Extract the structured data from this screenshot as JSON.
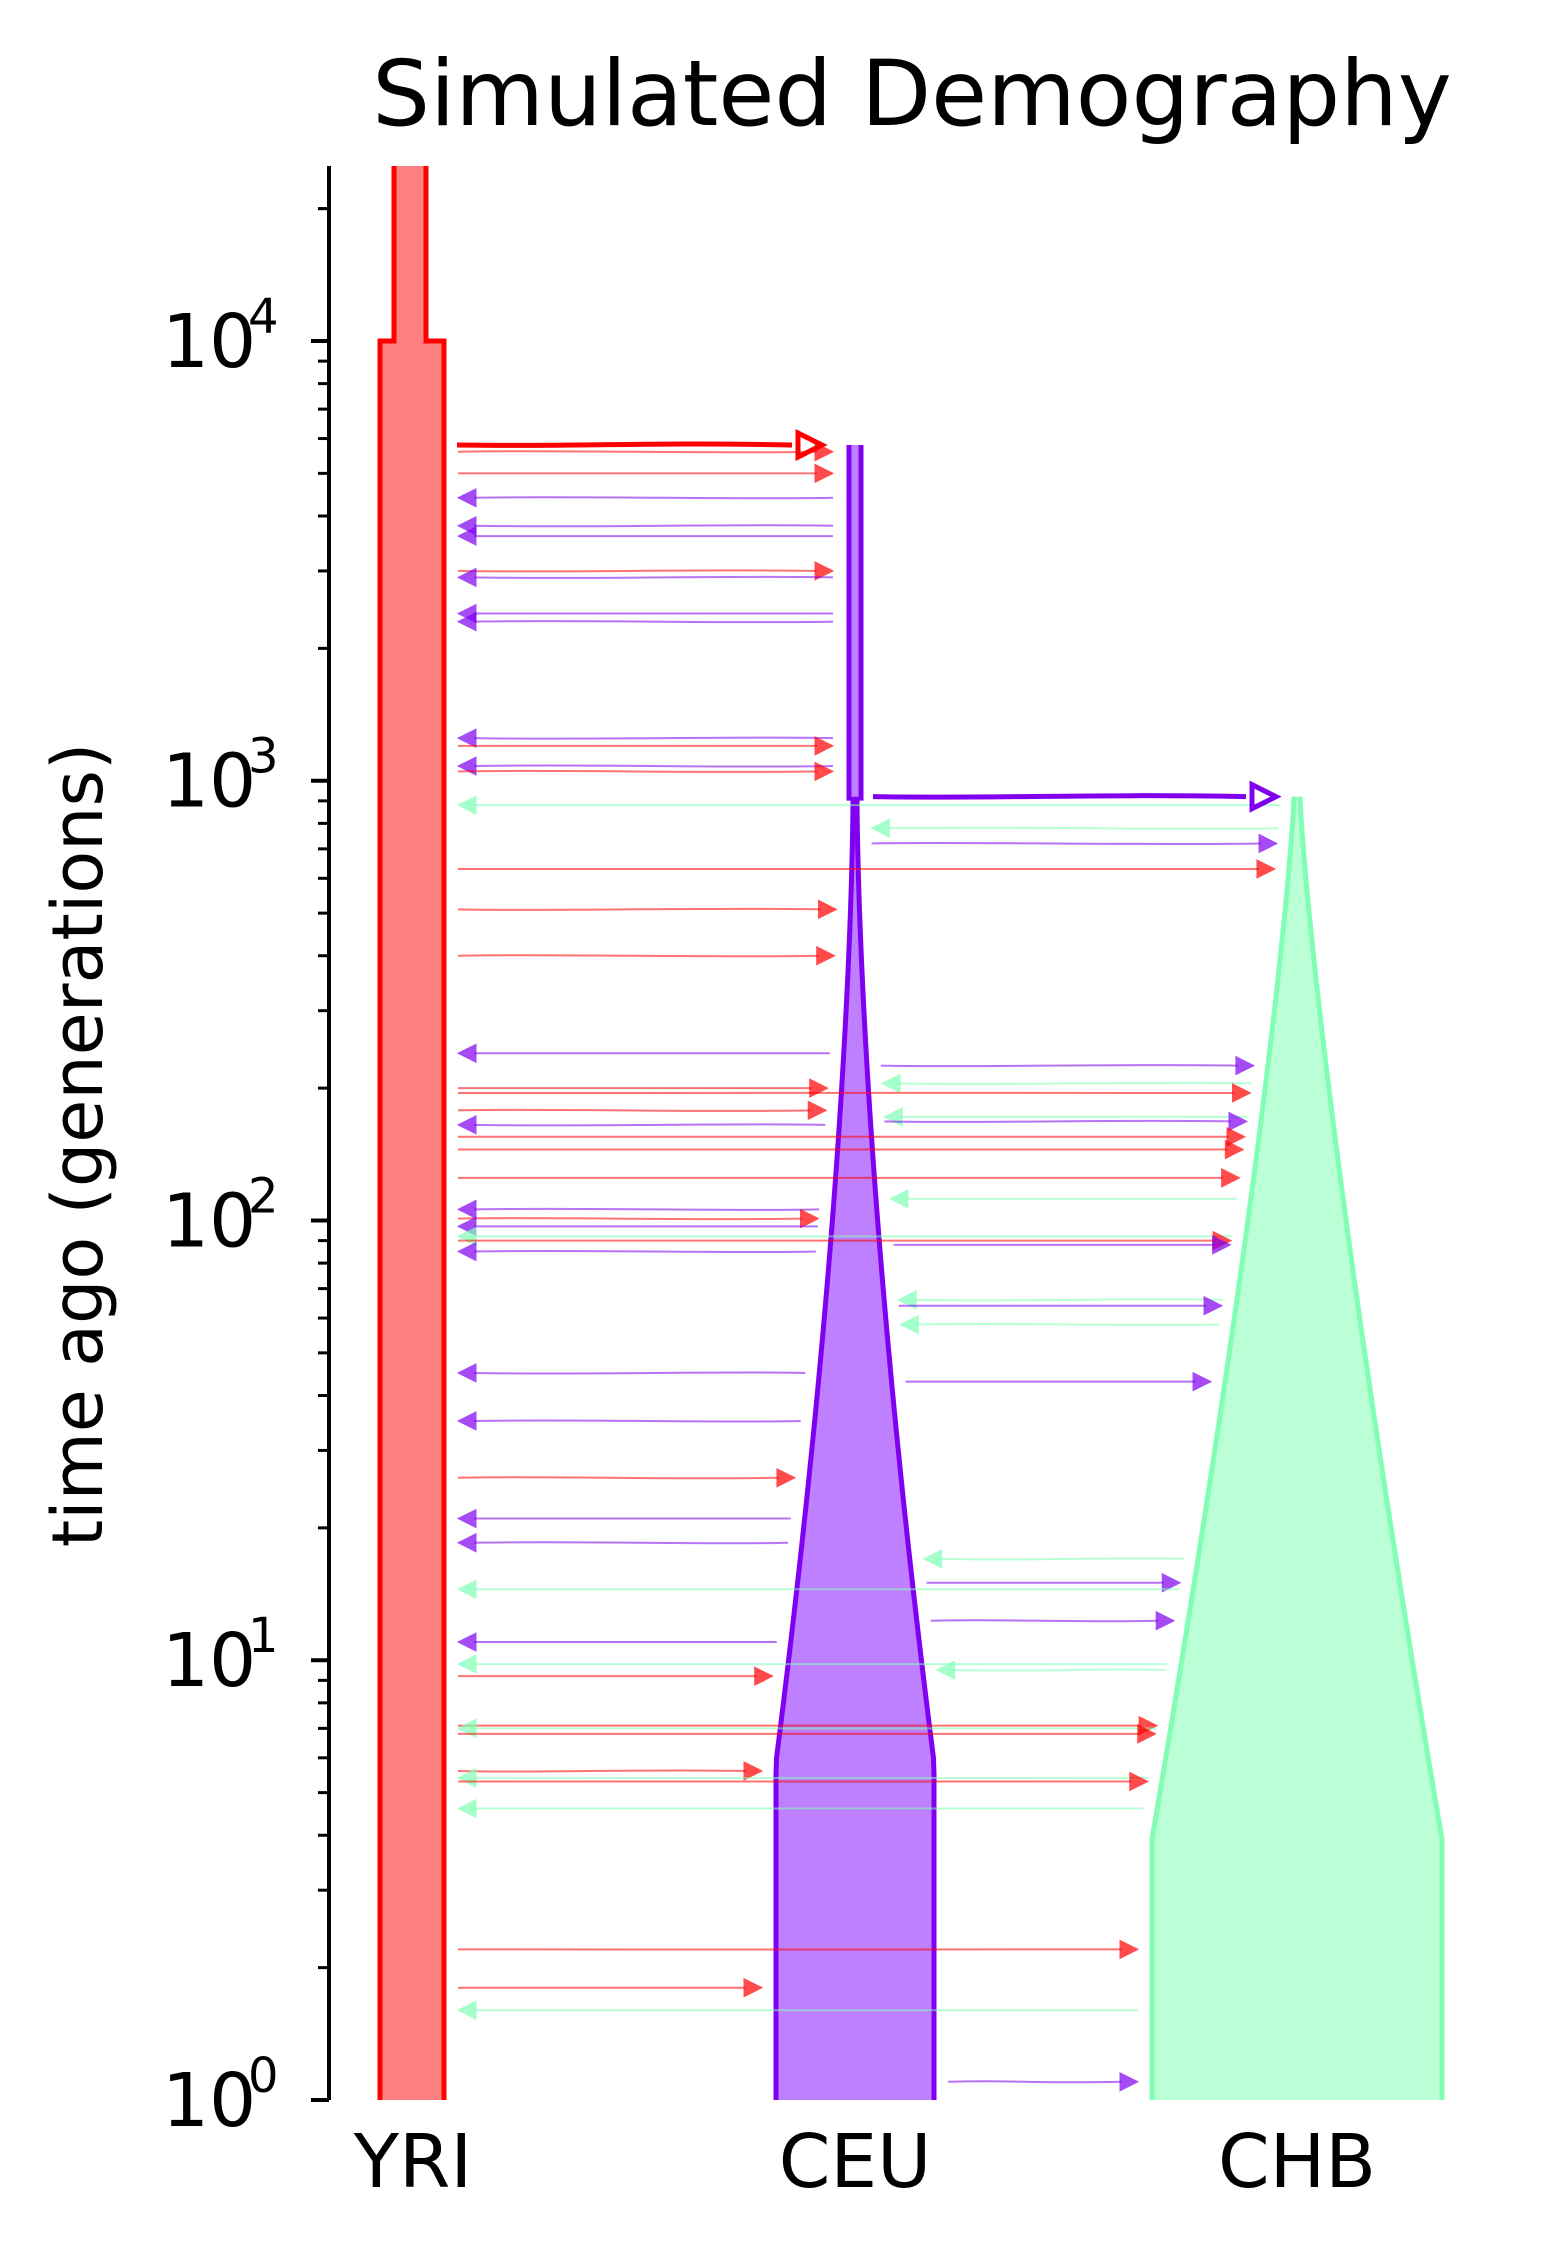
{
  "chart_data": {
    "type": "demography",
    "title": "Simulated Demography",
    "ylabel": "time ago (generations)",
    "yscale": "log",
    "ylim": [
      1,
      25000
    ],
    "yticks": [
      {
        "base": "10",
        "exp": "0",
        "value": 1
      },
      {
        "base": "10",
        "exp": "1",
        "value": 10
      },
      {
        "base": "10",
        "exp": "2",
        "value": 100
      },
      {
        "base": "10",
        "exp": "3",
        "value": 1000
      },
      {
        "base": "10",
        "exp": "4",
        "value": 10000
      }
    ],
    "grid": false,
    "populations": [
      {
        "name": "YRI",
        "color": "#ff0000",
        "fill": "#ff8080"
      },
      {
        "name": "CEU",
        "color": "#8000f0",
        "fill": "#bf80ff"
      },
      {
        "name": "CHB",
        "color": "#80ffb4",
        "fill": "#bbffd6"
      }
    ],
    "splits": [
      {
        "from": "YRI",
        "to": "CEU",
        "time": 5800
      },
      {
        "from": "CEU",
        "to": "CHB",
        "time": 920
      }
    ],
    "migration_time_range": [
      1,
      5800
    ],
    "migrations": [
      {
        "source": "YRI",
        "dest": "CEU",
        "time": 5600
      },
      {
        "source": "YRI",
        "dest": "CEU",
        "time": 5000
      },
      {
        "source": "CEU",
        "dest": "YRI",
        "time": 4400
      },
      {
        "source": "CEU",
        "dest": "YRI",
        "time": 3800
      },
      {
        "source": "CEU",
        "dest": "YRI",
        "time": 3600
      },
      {
        "source": "YRI",
        "dest": "CEU",
        "time": 3000
      },
      {
        "source": "CEU",
        "dest": "YRI",
        "time": 2900
      },
      {
        "source": "CEU",
        "dest": "YRI",
        "time": 2400
      },
      {
        "source": "CEU",
        "dest": "YRI",
        "time": 2300
      },
      {
        "source": "CEU",
        "dest": "YRI",
        "time": 1250
      },
      {
        "source": "YRI",
        "dest": "CEU",
        "time": 1200
      },
      {
        "source": "CEU",
        "dest": "YRI",
        "time": 1080
      },
      {
        "source": "YRI",
        "dest": "CEU",
        "time": 1050
      },
      {
        "source": "CHB",
        "dest": "YRI",
        "time": 880
      },
      {
        "source": "CHB",
        "dest": "CEU",
        "time": 780
      },
      {
        "source": "CEU",
        "dest": "CHB",
        "time": 720
      },
      {
        "source": "YRI",
        "dest": "CHB",
        "time": 630
      },
      {
        "source": "YRI",
        "dest": "CEU",
        "time": 510
      },
      {
        "source": "YRI",
        "dest": "CEU",
        "time": 400
      },
      {
        "source": "CEU",
        "dest": "YRI",
        "time": 240
      },
      {
        "source": "CEU",
        "dest": "CHB",
        "time": 225
      },
      {
        "source": "CHB",
        "dest": "CEU",
        "time": 205
      },
      {
        "source": "YRI",
        "dest": "CEU",
        "time": 200
      },
      {
        "source": "YRI",
        "dest": "CHB",
        "time": 195
      },
      {
        "source": "YRI",
        "dest": "CEU",
        "time": 178
      },
      {
        "source": "CHB",
        "dest": "CEU",
        "time": 172
      },
      {
        "source": "CEU",
        "dest": "CHB",
        "time": 168
      },
      {
        "source": "CEU",
        "dest": "YRI",
        "time": 165
      },
      {
        "source": "YRI",
        "dest": "CHB",
        "time": 155
      },
      {
        "source": "YRI",
        "dest": "CHB",
        "time": 145
      },
      {
        "source": "YRI",
        "dest": "CHB",
        "time": 125
      },
      {
        "source": "CHB",
        "dest": "CEU",
        "time": 112
      },
      {
        "source": "CEU",
        "dest": "YRI",
        "time": 106
      },
      {
        "source": "YRI",
        "dest": "CEU",
        "time": 101
      },
      {
        "source": "CEU",
        "dest": "YRI",
        "time": 97
      },
      {
        "source": "CHB",
        "dest": "YRI",
        "time": 92
      },
      {
        "source": "YRI",
        "dest": "CHB",
        "time": 90
      },
      {
        "source": "CEU",
        "dest": "CHB",
        "time": 88
      },
      {
        "source": "CEU",
        "dest": "YRI",
        "time": 85
      },
      {
        "source": "CHB",
        "dest": "CEU",
        "time": 66
      },
      {
        "source": "CEU",
        "dest": "CHB",
        "time": 64
      },
      {
        "source": "CHB",
        "dest": "CEU",
        "time": 58
      },
      {
        "source": "CEU",
        "dest": "YRI",
        "time": 45
      },
      {
        "source": "CEU",
        "dest": "CHB",
        "time": 43
      },
      {
        "source": "CEU",
        "dest": "YRI",
        "time": 35
      },
      {
        "source": "YRI",
        "dest": "CEU",
        "time": 26
      },
      {
        "source": "CEU",
        "dest": "YRI",
        "time": 21
      },
      {
        "source": "CEU",
        "dest": "YRI",
        "time": 18.5
      },
      {
        "source": "CHB",
        "dest": "CEU",
        "time": 17
      },
      {
        "source": "CEU",
        "dest": "CHB",
        "time": 15
      },
      {
        "source": "CHB",
        "dest": "YRI",
        "time": 14.5
      },
      {
        "source": "CEU",
        "dest": "CHB",
        "time": 12.3
      },
      {
        "source": "CEU",
        "dest": "YRI",
        "time": 11
      },
      {
        "source": "CHB",
        "dest": "YRI",
        "time": 9.8
      },
      {
        "source": "CHB",
        "dest": "CEU",
        "time": 9.5
      },
      {
        "source": "YRI",
        "dest": "CEU",
        "time": 9.2
      },
      {
        "source": "YRI",
        "dest": "CHB",
        "time": 7.1
      },
      {
        "source": "CHB",
        "dest": "YRI",
        "time": 7.0
      },
      {
        "source": "YRI",
        "dest": "CHB",
        "time": 6.8
      },
      {
        "source": "YRI",
        "dest": "CEU",
        "time": 5.6
      },
      {
        "source": "CHB",
        "dest": "YRI",
        "time": 5.4
      },
      {
        "source": "YRI",
        "dest": "CHB",
        "time": 5.3
      },
      {
        "source": "CHB",
        "dest": "YRI",
        "time": 4.6
      },
      {
        "source": "YRI",
        "dest": "CHB",
        "time": 2.2
      },
      {
        "source": "YRI",
        "dest": "CEU",
        "time": 1.8
      },
      {
        "source": "CHB",
        "dest": "YRI",
        "time": 1.6
      },
      {
        "source": "CEU",
        "dest": "CHB",
        "time": 1.1
      }
    ]
  }
}
